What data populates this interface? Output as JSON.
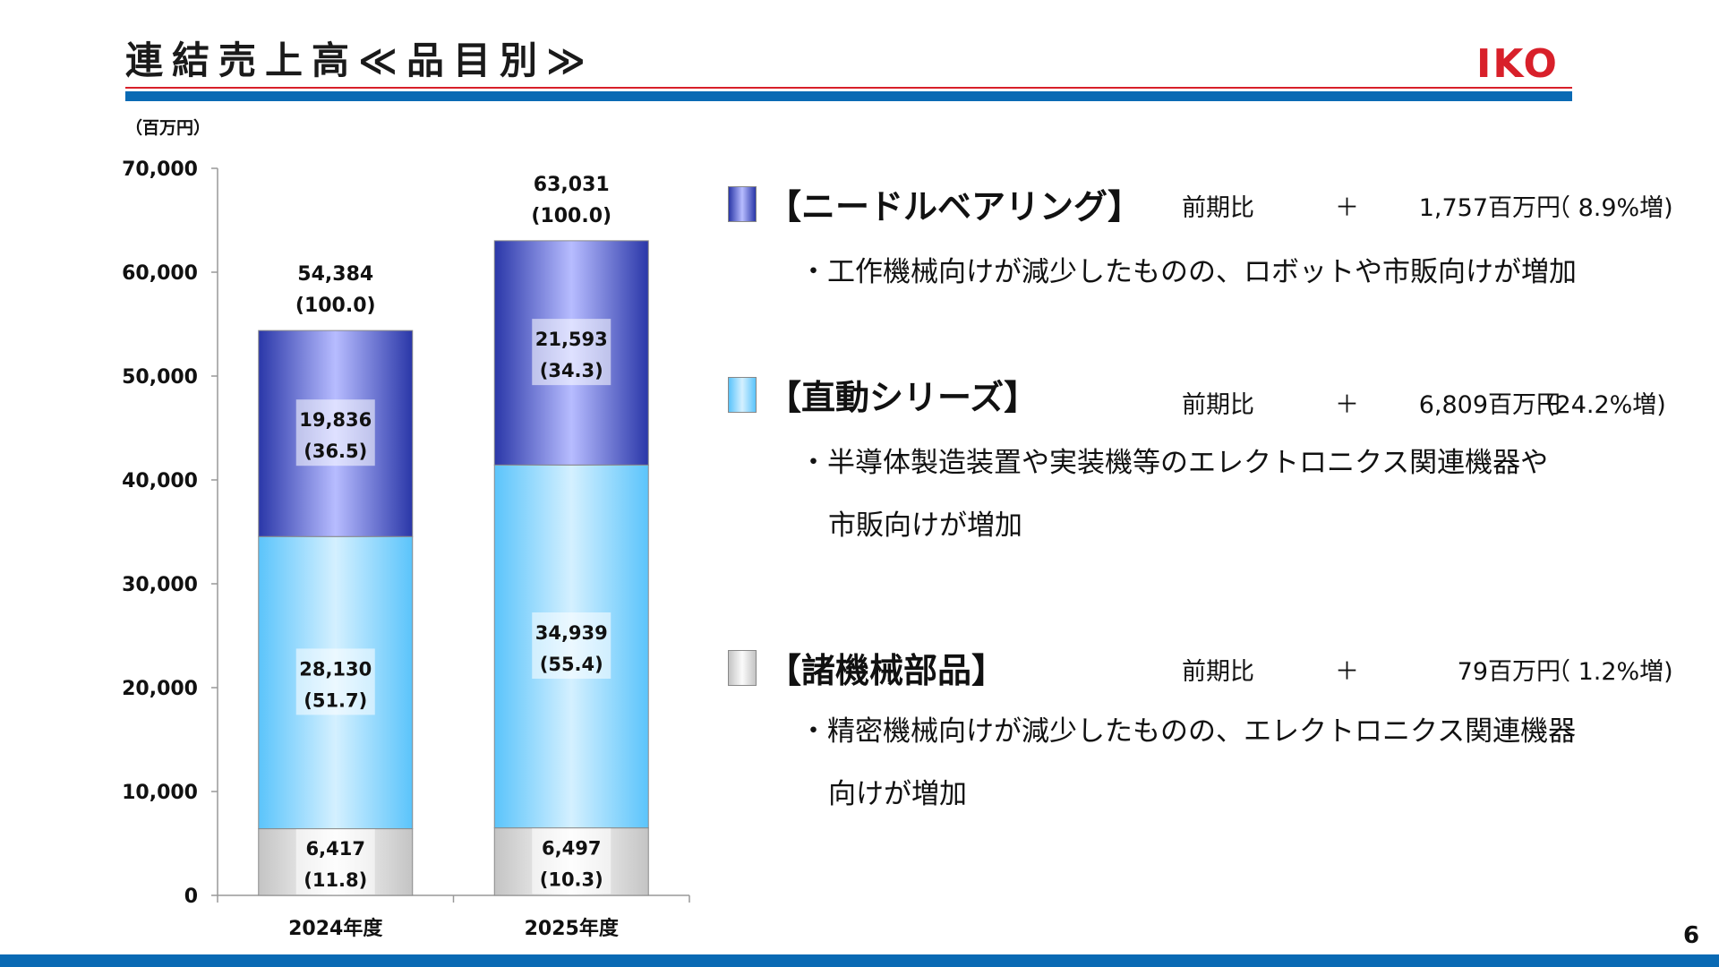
{
  "header": {
    "title": "連結売上高≪品目別≫",
    "logo_text": "IKO",
    "page_number": "6"
  },
  "colors": {
    "accent_blue": "#0a6ab4",
    "accent_red": "#d8202a",
    "needle": "#7f86e6",
    "linear": "#8fd6fb",
    "parts": "#d8d8d8"
  },
  "chart_data": {
    "type": "bar",
    "stacked": true,
    "unit_label": "（百万円）",
    "categories": [
      "2024年度",
      "2025年度"
    ],
    "ylim": [
      0,
      70000
    ],
    "yticks": [
      "0",
      "10,000",
      "20,000",
      "30,000",
      "40,000",
      "50,000",
      "60,000",
      "70,000"
    ],
    "series": [
      {
        "key": "parts",
        "values": [
          6417,
          6497
        ],
        "labels": [
          "6,417",
          "6,497"
        ],
        "shares": [
          "(11.8)",
          "(10.3)"
        ]
      },
      {
        "key": "linear",
        "values": [
          28130,
          34939
        ],
        "labels": [
          "28,130",
          "34,939"
        ],
        "shares": [
          "(51.7)",
          "(55.4)"
        ]
      },
      {
        "key": "needle",
        "values": [
          19836,
          21593
        ],
        "labels": [
          "19,836",
          "21,593"
        ],
        "shares": [
          "(36.5)",
          "(34.3)"
        ]
      }
    ],
    "totals": {
      "values": [
        54384,
        63031
      ],
      "labels": [
        "54,384",
        "63,031"
      ],
      "shares": [
        "(100.0)",
        "(100.0)"
      ]
    }
  },
  "segments": [
    {
      "title": "【ニードルベアリング】",
      "compare_label": "前期比",
      "plus": "＋",
      "amount": "1,757百万円",
      "pct": "（ 8.9%増)",
      "lines": [
        "・工作機械向けが減少したものの、ロボットや市販向けが増加"
      ]
    },
    {
      "title": "【直動シリーズ】",
      "compare_label": "前期比",
      "plus": "＋",
      "amount": "6,809百万円",
      "pct": "(24.2%増)",
      "lines": [
        "・半導体製造装置や実装機等のエレクトロニクス関連機器や",
        "市販向けが増加"
      ]
    },
    {
      "title": "【諸機械部品】",
      "compare_label": "前期比",
      "plus": "＋",
      "amount": "79百万円",
      "pct": "（ 1.2%増)",
      "lines": [
        "・精密機械向けが減少したものの、エレクトロニクス関連機器",
        "向けが増加"
      ]
    }
  ]
}
